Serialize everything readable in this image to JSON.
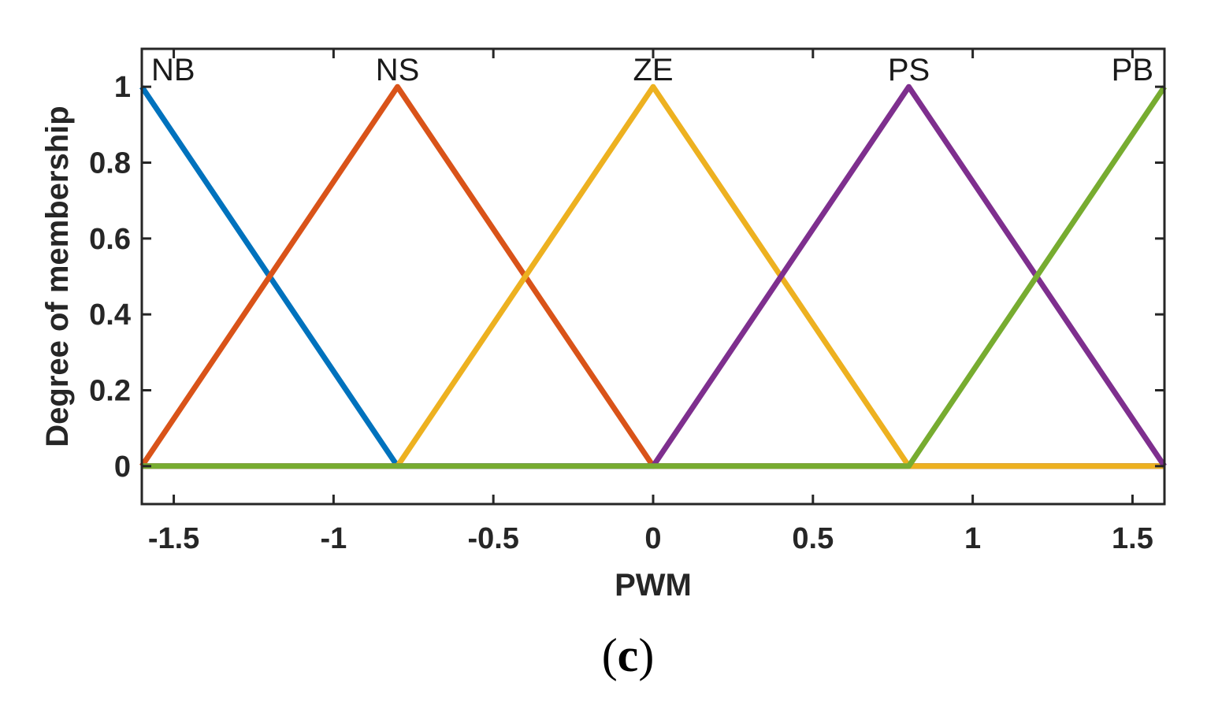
{
  "chart_data": {
    "type": "line",
    "title": "",
    "xlabel": "PWM",
    "ylabel": "Degree of membership",
    "xlim": [
      -1.6,
      1.6
    ],
    "ylim": [
      -0.1,
      1.1
    ],
    "x_ticks": [
      -1.5,
      -1,
      -0.5,
      0,
      0.5,
      1,
      1.5
    ],
    "x_tick_labels": [
      "-1.5",
      "-1",
      "-0.5",
      "0",
      "0.5",
      "1",
      "1.5"
    ],
    "y_ticks": [
      0,
      0.2,
      0.4,
      0.6,
      0.8,
      1
    ],
    "y_tick_labels": [
      "0",
      "0.2",
      "0.4",
      "0.6",
      "0.8",
      "1"
    ],
    "grid": false,
    "series": [
      {
        "name": "NB",
        "color": "#0072BD",
        "x": [
          -1.6,
          -0.8,
          1.6
        ],
        "y": [
          1,
          0,
          0
        ]
      },
      {
        "name": "NS",
        "color": "#D95319",
        "x": [
          -1.6,
          -0.8,
          0,
          1.6
        ],
        "y": [
          0,
          1,
          0,
          0
        ]
      },
      {
        "name": "ZE",
        "color": "#EDB120",
        "x": [
          -1.6,
          -0.8,
          0,
          0.8,
          1.6
        ],
        "y": [
          0,
          0,
          1,
          0,
          0
        ]
      },
      {
        "name": "PS",
        "color": "#7E2F8E",
        "x": [
          -1.6,
          0,
          0.8,
          1.6
        ],
        "y": [
          0,
          0,
          1,
          0
        ]
      },
      {
        "name": "PB",
        "color": "#77AC30",
        "x": [
          -1.6,
          0.8,
          1.6
        ],
        "y": [
          0,
          0,
          1
        ]
      }
    ],
    "mf_labels": [
      {
        "text": "NB",
        "x": -1.6
      },
      {
        "text": "NS",
        "x": -0.8
      },
      {
        "text": "ZE",
        "x": 0
      },
      {
        "text": "PS",
        "x": 0.8
      },
      {
        "text": "PB",
        "x": 1.6
      }
    ]
  },
  "caption": {
    "open": "(",
    "letter": "c",
    "close": ")"
  }
}
